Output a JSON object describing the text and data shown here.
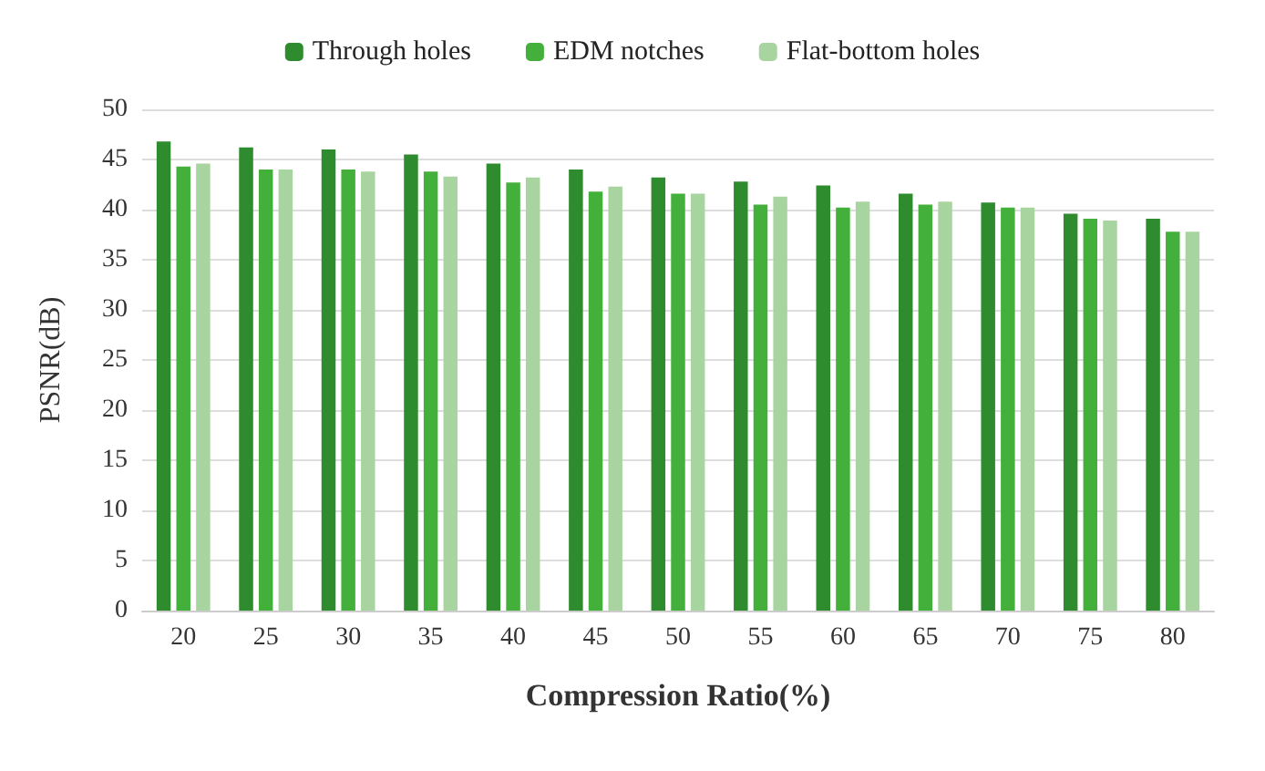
{
  "chart_data": {
    "type": "bar",
    "xlabel": "Compression Ratio(%)",
    "ylabel": "PSNR(dB)",
    "categories": [
      "20",
      "25",
      "30",
      "35",
      "40",
      "45",
      "50",
      "55",
      "60",
      "65",
      "70",
      "75",
      "80"
    ],
    "series": [
      {
        "name": "Through holes",
        "color": "#2e8b2e",
        "values": [
          46.8,
          46.2,
          46,
          45.5,
          44.6,
          44,
          43.2,
          42.8,
          42.4,
          41.6,
          40.7,
          39.6,
          39.1
        ]
      },
      {
        "name": "EDM notches",
        "color": "#44b03c",
        "values": [
          44.3,
          44,
          44,
          43.8,
          42.7,
          41.8,
          41.6,
          40.5,
          40.2,
          40.5,
          40.2,
          39.1,
          37.8
        ]
      },
      {
        "name": "Flat-bottom holes",
        "color": "#a8d4a0",
        "values": [
          44.6,
          44,
          43.8,
          43.3,
          43.2,
          42.3,
          41.6,
          41.3,
          40.8,
          40.8,
          40.2,
          38.9,
          37.8
        ]
      }
    ],
    "ylim": [
      0,
      50
    ],
    "yticks": [
      0,
      5,
      10,
      15,
      20,
      25,
      30,
      35,
      40,
      45,
      50
    ],
    "grid": "y",
    "legend": "top"
  }
}
